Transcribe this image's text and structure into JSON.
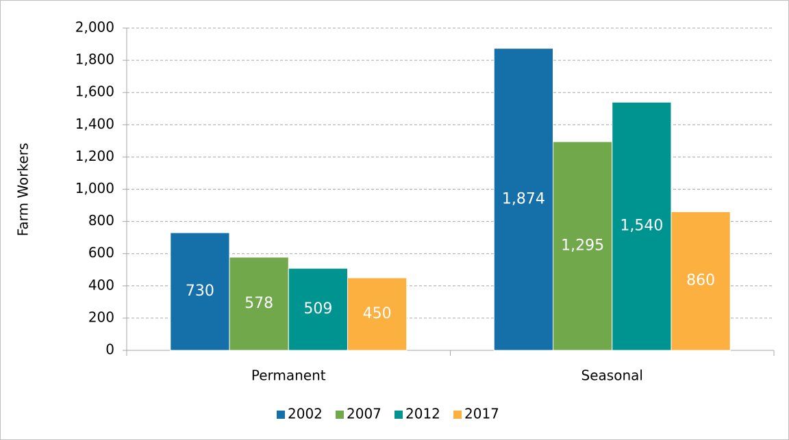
{
  "chart_data": {
    "type": "bar",
    "y_label": "Farm Workers",
    "categories": [
      "Permanent",
      "Seasonal"
    ],
    "series": [
      {
        "name": "2002",
        "color": "#1570a9",
        "values": [
          730,
          1874
        ],
        "value_labels": [
          "730",
          "1,874"
        ]
      },
      {
        "name": "2007",
        "color": "#70a84b",
        "values": [
          578,
          1295
        ],
        "value_labels": [
          "578",
          "1,295"
        ]
      },
      {
        "name": "2012",
        "color": "#009490",
        "values": [
          509,
          1540
        ],
        "value_labels": [
          "509",
          "1,540"
        ]
      },
      {
        "name": "2017",
        "color": "#fbb040",
        "values": [
          450,
          860
        ],
        "value_labels": [
          "450",
          "860"
        ]
      }
    ],
    "ylim": [
      0,
      2000
    ],
    "yticks": [
      0,
      200,
      400,
      600,
      800,
      {
        "value": 1000,
        "label": "1,000"
      },
      {
        "value": 1200,
        "label": "1,200"
      },
      {
        "value": 1400,
        "label": "1,400"
      },
      {
        "value": 1600,
        "label": "1,600"
      },
      {
        "value": 1800,
        "label": "1,800"
      },
      {
        "value": 2000,
        "label": "2,000"
      }
    ],
    "grid": true,
    "legend": "bottom"
  }
}
